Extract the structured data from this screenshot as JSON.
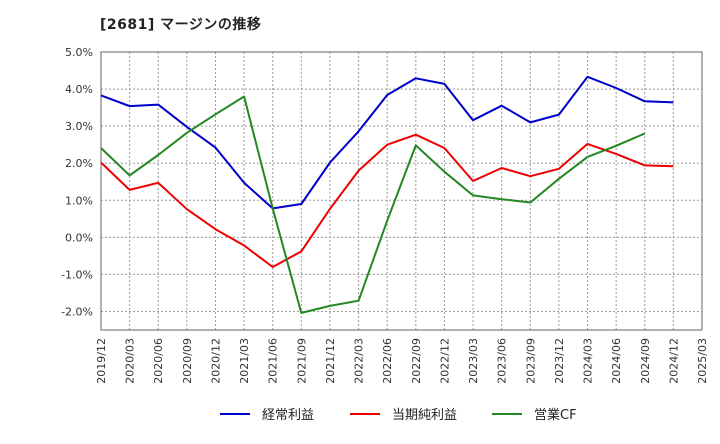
{
  "title": "[2681]  マージンの推移",
  "chart_data": {
    "type": "line",
    "title": "[2681]  マージンの推移",
    "xlabel": "",
    "ylabel": "",
    "ylim": [
      -2.5,
      5.0
    ],
    "yticks": [
      5.0,
      4.0,
      3.0,
      2.0,
      1.0,
      0.0,
      -1.0,
      -2.0
    ],
    "ytick_labels": [
      "5.0%",
      "4.0%",
      "3.0%",
      "2.0%",
      "1.0%",
      "0.0%",
      "-1.0%",
      "-2.0%"
    ],
    "x_labels": [
      "2019/12",
      "2020/03",
      "2020/06",
      "2020/09",
      "2020/12",
      "2021/03",
      "2021/06",
      "2021/09",
      "2021/12",
      "2022/03",
      "2022/06",
      "2022/09",
      "2022/12",
      "2023/03",
      "2023/06",
      "2023/09",
      "2023/12",
      "2024/03",
      "2024/06",
      "2024/09",
      "2024/12",
      "2025/03"
    ],
    "grid": true,
    "legend_position": "bottom",
    "series": [
      {
        "name": "経常利益",
        "color": "#0000cc",
        "values": [
          3.83,
          3.54,
          3.58,
          2.98,
          2.42,
          1.47,
          0.78,
          0.9,
          2.02,
          2.86,
          3.84,
          4.29,
          4.14,
          3.16,
          3.55,
          3.1,
          3.31,
          4.33,
          4.03,
          3.67,
          3.64,
          null
        ]
      },
      {
        "name": "当期純利益",
        "color": "#ee0000",
        "values": [
          2.02,
          1.28,
          1.47,
          0.76,
          0.22,
          -0.22,
          -0.8,
          -0.38,
          0.77,
          1.8,
          2.5,
          2.77,
          2.41,
          1.52,
          1.87,
          1.65,
          1.85,
          2.52,
          2.25,
          1.94,
          1.92,
          null
        ]
      },
      {
        "name": "営業CF",
        "color": "#228822",
        "values": [
          2.41,
          1.67,
          2.22,
          2.82,
          3.32,
          3.8,
          0.78,
          -2.04,
          -1.85,
          -1.71,
          0.45,
          2.48,
          1.77,
          1.13,
          1.03,
          0.94,
          1.58,
          2.17,
          2.47,
          2.8,
          null,
          null
        ]
      }
    ]
  }
}
